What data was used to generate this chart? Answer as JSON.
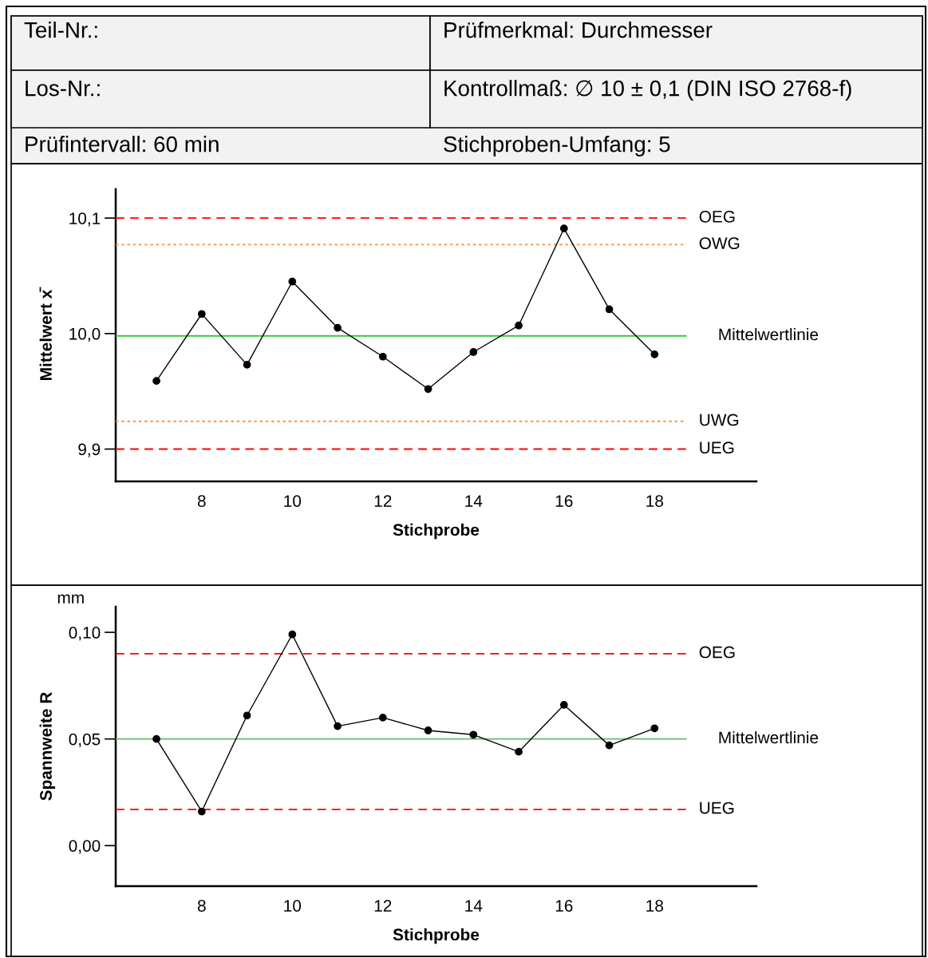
{
  "chart_data": [
    {
      "type": "other",
      "annotations": [
        "Teil-Nr.:",
        "Prüfmerkmal: Durchmesser",
        "Los-Nr.:",
        "Kontrollmaß: ∅ 10 ± 0,1 (DIN ISO 2768-f)",
        "Prüfintervall: 60 min",
        "Stichproben-Umfang: 5"
      ]
    },
    {
      "type": "line",
      "xlabel": "Stichprobe",
      "ylabel": "Mittelwert x̄",
      "marker": "circle",
      "line_style": "solid",
      "grid": false,
      "legend": false,
      "x": [
        7,
        8,
        9,
        10,
        11,
        12,
        13,
        14,
        15,
        16,
        17,
        18
      ],
      "series": [
        {
          "color": "#000000",
          "values": [
            9.959,
            10.017,
            9.973,
            10.045,
            10.005,
            9.98,
            9.952,
            9.984,
            10.007,
            10.091,
            10.021,
            9.982
          ]
        }
      ],
      "xlim": [
        6.1,
        20.25
      ],
      "xticks": [
        8,
        10,
        12,
        14,
        16,
        18
      ],
      "ylim": [
        9.872,
        10.125
      ],
      "yticks": [
        {
          "value": 9.9,
          "label": "9,9"
        },
        {
          "value": 10.0,
          "label": "10,0"
        },
        {
          "value": 10.1,
          "label": "10,1"
        }
      ],
      "ref_lines": [
        {
          "axis": "y",
          "value": 10.1,
          "label": "OEG",
          "color": "#ff0000",
          "line_style": "dashed"
        },
        {
          "axis": "y",
          "value": 10.077,
          "label": "OWG",
          "color": "#f79646",
          "line_style": "dotted"
        },
        {
          "axis": "y",
          "value": 9.998,
          "label": "Mittelwertlinie",
          "color": "#33cc33",
          "line_style": "solid"
        },
        {
          "axis": "y",
          "value": 9.924,
          "label": "UWG",
          "color": "#f79646",
          "line_style": "dotted"
        },
        {
          "axis": "y",
          "value": 9.9,
          "label": "UEG",
          "color": "#ff0000",
          "line_style": "dashed"
        }
      ]
    },
    {
      "type": "line",
      "xlabel": "Stichprobe",
      "ylabel": "Spannweite R",
      "marker": "circle",
      "line_style": "solid",
      "grid": false,
      "legend": false,
      "annotations": [
        "mm"
      ],
      "x": [
        7,
        8,
        9,
        10,
        11,
        12,
        13,
        14,
        15,
        16,
        17,
        18
      ],
      "series": [
        {
          "color": "#000000",
          "values": [
            0.05,
            0.016,
            0.061,
            0.099,
            0.056,
            0.06,
            0.054,
            0.052,
            0.044,
            0.066,
            0.047,
            0.055
          ]
        }
      ],
      "xlim": [
        6.1,
        20.25
      ],
      "xticks": [
        8,
        10,
        12,
        14,
        16,
        18
      ],
      "ylim": [
        -0.019,
        0.112
      ],
      "yticks": [
        {
          "value": 0.0,
          "label": "0,00"
        },
        {
          "value": 0.05,
          "label": "0,05"
        },
        {
          "value": 0.1,
          "label": "0,10"
        }
      ],
      "ref_lines": [
        {
          "axis": "y",
          "value": 0.09,
          "label": "OEG",
          "color": "#ff0000",
          "line_style": "dashed"
        },
        {
          "axis": "y",
          "value": 0.05,
          "label": "Mittelwertlinie",
          "color": "#66bb66",
          "line_style": "solid"
        },
        {
          "axis": "y",
          "value": 0.017,
          "label": "UEG",
          "color": "#ff0000",
          "line_style": "dashed"
        }
      ]
    }
  ]
}
